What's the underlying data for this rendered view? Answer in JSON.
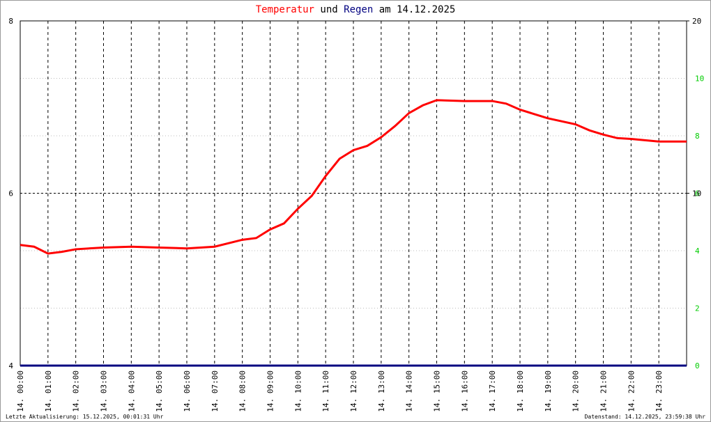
{
  "chart_data": {
    "type": "line",
    "title": [
      {
        "text": "Temperatur",
        "color": "#ff0000"
      },
      {
        "text": " und ",
        "color": "#000000"
      },
      {
        "text": "Regen",
        "color": "#000080"
      },
      {
        "text": " am 14.12.2025",
        "color": "#000000"
      }
    ],
    "xlim": [
      0,
      24
    ],
    "xticks": [
      {
        "value": 0,
        "label": "14. 00:00"
      },
      {
        "value": 1,
        "label": "14. 01:00"
      },
      {
        "value": 2,
        "label": "14. 02:00"
      },
      {
        "value": 3,
        "label": "14. 03:00"
      },
      {
        "value": 4,
        "label": "14. 04:00"
      },
      {
        "value": 5,
        "label": "14. 05:00"
      },
      {
        "value": 6,
        "label": "14. 06:00"
      },
      {
        "value": 7,
        "label": "14. 07:00"
      },
      {
        "value": 8,
        "label": "14. 08:00"
      },
      {
        "value": 9,
        "label": "14. 09:00"
      },
      {
        "value": 10,
        "label": "14. 10:00"
      },
      {
        "value": 11,
        "label": "14. 11:00"
      },
      {
        "value": 12,
        "label": "14. 12:00"
      },
      {
        "value": 13,
        "label": "14. 13:00"
      },
      {
        "value": 14,
        "label": "14. 14:00"
      },
      {
        "value": 15,
        "label": "14. 15:00"
      },
      {
        "value": 16,
        "label": "14. 16:00"
      },
      {
        "value": 17,
        "label": "14. 17:00"
      },
      {
        "value": 18,
        "label": "14. 18:00"
      },
      {
        "value": 19,
        "label": "14. 19:00"
      },
      {
        "value": 20,
        "label": "14. 20:00"
      },
      {
        "value": 21,
        "label": "14. 21:00"
      },
      {
        "value": 22,
        "label": "14. 22:00"
      },
      {
        "value": 23,
        "label": "14. 23:00"
      }
    ],
    "ylim": [
      4,
      8
    ],
    "yticks": [
      4,
      6,
      8
    ],
    "y2lim": [
      0,
      12
    ],
    "y2ticks": [
      0,
      2,
      4,
      6,
      8,
      10
    ],
    "y2color": "#00cc00",
    "y3lim": [
      0,
      20
    ],
    "y3ticks": [
      10,
      20
    ],
    "series": [
      {
        "name": "Temperatur",
        "color": "#ff0000",
        "axis": "y",
        "x": [
          0,
          0.5,
          1,
          1.5,
          2,
          3,
          4,
          5,
          6,
          7,
          8,
          8.5,
          9,
          9.5,
          10,
          10.5,
          11,
          11.5,
          12,
          12.5,
          13,
          13.5,
          14,
          14.5,
          15,
          16,
          17,
          17.5,
          18,
          18.5,
          19,
          20,
          20.5,
          21,
          21.5,
          22,
          23,
          24
        ],
        "values": [
          5.4,
          5.38,
          5.3,
          5.32,
          5.35,
          5.37,
          5.38,
          5.37,
          5.36,
          5.38,
          5.46,
          5.48,
          5.58,
          5.65,
          5.82,
          5.97,
          6.2,
          6.4,
          6.5,
          6.55,
          6.65,
          6.78,
          6.93,
          7.02,
          7.08,
          7.07,
          7.07,
          7.04,
          6.97,
          6.92,
          6.87,
          6.8,
          6.73,
          6.68,
          6.64,
          6.63,
          6.6,
          6.6
        ]
      },
      {
        "name": "Regen",
        "color": "#000080",
        "axis": "y2",
        "x": [
          0,
          24
        ],
        "values": [
          0,
          0
        ]
      }
    ],
    "footer_left": "Letzte Aktualisierung: 15.12.2025, 00:01:31 Uhr",
    "footer_right": "Datenstand: 14.12.2025, 23:59:38 Uhr"
  }
}
